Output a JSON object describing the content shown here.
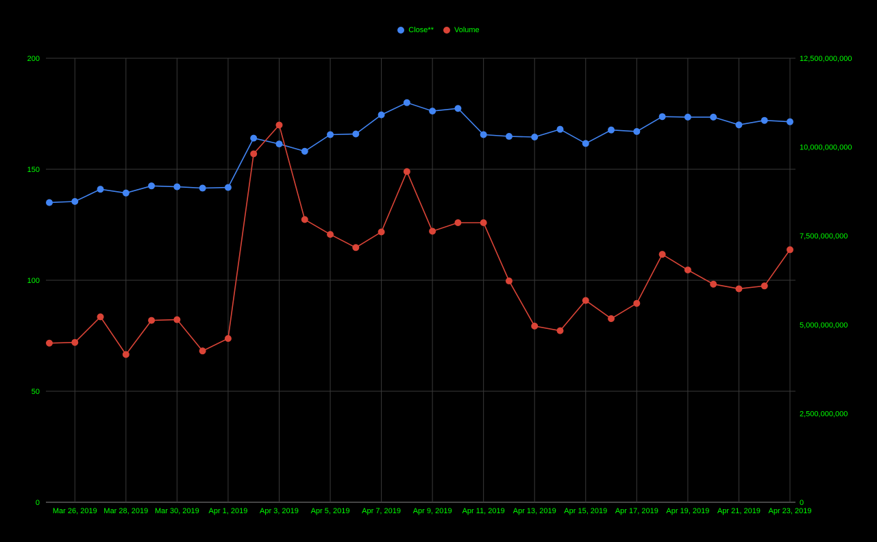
{
  "colors": {
    "background": "#000000",
    "text": "#00ff00",
    "grid": "#3a3a3a",
    "close": "#4285f4",
    "volume": "#db4437"
  },
  "legend": {
    "close_label": "Close**",
    "volume_label": "Volume"
  },
  "chart_data": {
    "type": "line",
    "title": "",
    "x": [
      "Mar 25, 2019",
      "Mar 26, 2019",
      "Mar 27, 2019",
      "Mar 28, 2019",
      "Mar 29, 2019",
      "Mar 30, 2019",
      "Mar 31, 2019",
      "Apr 1, 2019",
      "Apr 2, 2019",
      "Apr 3, 2019",
      "Apr 4, 2019",
      "Apr 5, 2019",
      "Apr 6, 2019",
      "Apr 7, 2019",
      "Apr 8, 2019",
      "Apr 9, 2019",
      "Apr 10, 2019",
      "Apr 11, 2019",
      "Apr 12, 2019",
      "Apr 13, 2019",
      "Apr 14, 2019",
      "Apr 15, 2019",
      "Apr 16, 2019",
      "Apr 17, 2019",
      "Apr 18, 2019",
      "Apr 19, 2019",
      "Apr 20, 2019",
      "Apr 21, 2019",
      "Apr 22, 2019",
      "Apr 23, 2019"
    ],
    "x_tick_labels": [
      "Mar 26, 2019",
      "Mar 28, 2019",
      "Mar 30, 2019",
      "Apr 1, 2019",
      "Apr 3, 2019",
      "Apr 5, 2019",
      "Apr 7, 2019",
      "Apr 9, 2019",
      "Apr 11, 2019",
      "Apr 13, 2019",
      "Apr 15, 2019",
      "Apr 17, 2019",
      "Apr 19, 2019",
      "Apr 21, 2019",
      "Apr 23, 2019"
    ],
    "y_left": {
      "lim": [
        0,
        200
      ],
      "ticks": [
        0,
        50,
        100,
        150,
        200
      ],
      "tick_labels": [
        "0",
        "50",
        "100",
        "150",
        "200"
      ]
    },
    "y_right": {
      "lim": [
        0,
        12500000000
      ],
      "ticks": [
        0,
        2500000000,
        5000000000,
        7500000000,
        10000000000,
        12500000000
      ],
      "tick_labels": [
        "0",
        "2,500,000,000",
        "5,000,000,000",
        "7,500,000,000",
        "10,000,000,000",
        "12,500,000,000"
      ]
    },
    "grid": true,
    "legend_position": "top-center",
    "series": [
      {
        "name": "Close**",
        "axis": "left",
        "values": [
          135.0,
          135.5,
          141.0,
          139.3,
          142.5,
          142.1,
          141.5,
          141.8,
          164.0,
          161.4,
          158.1,
          165.6,
          165.9,
          174.5,
          180.0,
          176.2,
          177.4,
          165.6,
          164.8,
          164.5,
          168.0,
          161.6,
          167.7,
          167.0,
          173.7,
          173.5,
          173.5,
          170.0,
          172.0,
          171.4
        ]
      },
      {
        "name": "Volume",
        "axis": "right",
        "values": [
          4480000000,
          4500000000,
          5220000000,
          4160000000,
          5120000000,
          5140000000,
          4260000000,
          4610000000,
          9810000000,
          10620000000,
          7960000000,
          7540000000,
          7170000000,
          7610000000,
          9310000000,
          7630000000,
          7870000000,
          7870000000,
          6230000000,
          4960000000,
          4830000000,
          5680000000,
          5170000000,
          5600000000,
          6980000000,
          6540000000,
          6140000000,
          6010000000,
          6090000000,
          7110000000
        ]
      }
    ]
  }
}
